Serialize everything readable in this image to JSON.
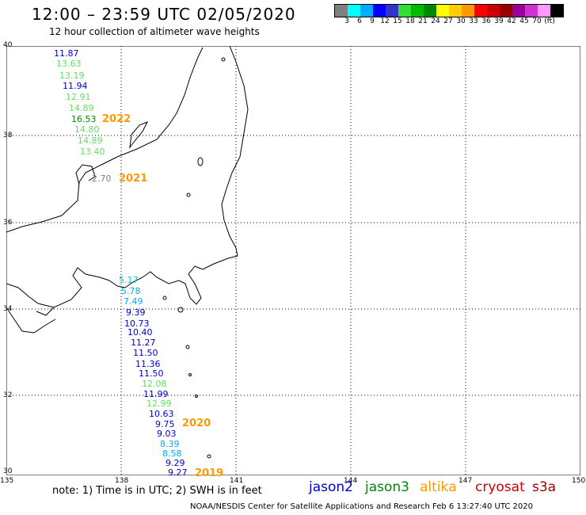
{
  "header": {
    "title": "12:00 – 23:59 UTC 02/05/2020",
    "subtitle": "12 hour collection of altimeter wave heights"
  },
  "colorbar": {
    "colors": [
      "#808080",
      "#00ffff",
      "#00aaff",
      "#0000ff",
      "#3333cc",
      "#33dd33",
      "#00bb00",
      "#008800",
      "#ffff00",
      "#ffcc00",
      "#ff9900",
      "#ff0000",
      "#cc0000",
      "#990000",
      "#990099",
      "#cc33cc",
      "#ff99ff",
      "#000000"
    ],
    "labels": [
      "3",
      "6",
      "9",
      "12",
      "15",
      "18",
      "21",
      "24",
      "27",
      "30",
      "33",
      "36",
      "39",
      "42",
      "45",
      "70",
      "(ft)"
    ]
  },
  "axes": {
    "lat_labels": [
      "40",
      "38",
      "36",
      "34",
      "32",
      "30"
    ],
    "lon_labels": [
      "135",
      "138",
      "141",
      "144",
      "147",
      "150"
    ]
  },
  "track_2022": {
    "year": "2022",
    "values": [
      "11.87",
      "13.63",
      "13.19",
      "11.94",
      "12.91",
      "14.89",
      "16.53",
      "14.80",
      "14.89",
      "13.40"
    ],
    "colors": [
      "#0000cc",
      "#66dd66",
      "#66dd66",
      "#0000cc",
      "#66dd66",
      "#66dd66",
      "#008800",
      "#66dd66",
      "#66dd66",
      "#66dd66"
    ]
  },
  "track_2021": {
    "year": "2021",
    "values": [
      "2.70"
    ],
    "colors": [
      "#808080"
    ]
  },
  "track_2020": {
    "year": "2020",
    "values": [
      "5.17",
      "5.78",
      "7.49",
      "9.39",
      "10.73",
      "10.40",
      "11.27",
      "11.50",
      "11.36",
      "11.50",
      "12.08",
      "11.99",
      "12.99",
      "10.63",
      "9.75",
      "9.03",
      "8.39",
      "8.58"
    ],
    "colors": [
      "#00cccc",
      "#00aaff",
      "#00aaff",
      "#0000cc",
      "#0000cc",
      "#0000cc",
      "#0000cc",
      "#0000cc",
      "#0000cc",
      "#0000cc",
      "#66dd66",
      "#0000cc",
      "#66dd66",
      "#0000cc",
      "#0000cc",
      "#0000cc",
      "#00aaff",
      "#00aaff"
    ]
  },
  "track_2019": {
    "year": "2019",
    "values": [
      "9.29",
      "9.27"
    ],
    "colors": [
      "#0000cc",
      "#0000cc"
    ]
  },
  "footer": {
    "note": "note:  1) Time is in UTC;  2) SWH is in feet",
    "credit": "NOAA/NESDIS Center for Satellite Applications and Research     Feb  6 13:27:40 UTC 2020",
    "legend": [
      {
        "label": "jason2",
        "color": "#0000cc"
      },
      {
        "label": "jason3",
        "color": "#008800"
      },
      {
        "label": "altika",
        "color": "#ff9900"
      },
      {
        "label": "cryosat",
        "color": "#cc0000"
      },
      {
        "label": "s3a",
        "color": "#990000"
      }
    ]
  }
}
